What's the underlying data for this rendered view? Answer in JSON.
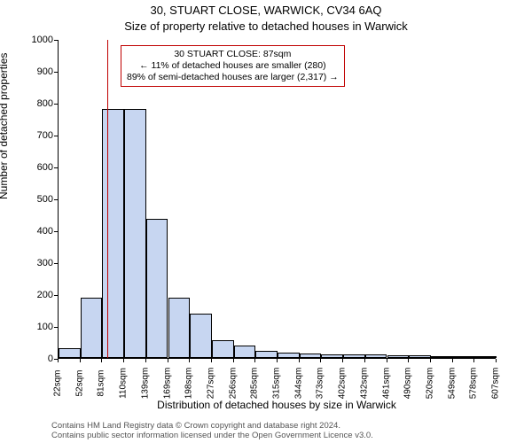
{
  "title_line1": "30, STUART CLOSE, WARWICK, CV34 6AQ",
  "title_line2": "Size of property relative to detached houses in Warwick",
  "ylabel": "Number of detached properties",
  "xlabel": "Distribution of detached houses by size in Warwick",
  "chart": {
    "type": "histogram",
    "background_color": "#ffffff",
    "bar_fill": "#c7d6f1",
    "bar_stroke": "#000000",
    "ref_line_color": "#c00000",
    "anno_border_color": "#c00000",
    "ylim": [
      0,
      1000
    ],
    "ytick_step": 100,
    "yticks": [
      0,
      100,
      200,
      300,
      400,
      500,
      600,
      700,
      800,
      900,
      1000
    ],
    "xticks": [
      "22sqm",
      "52sqm",
      "81sqm",
      "110sqm",
      "139sqm",
      "169sqm",
      "198sqm",
      "227sqm",
      "256sqm",
      "285sqm",
      "315sqm",
      "344sqm",
      "373sqm",
      "402sqm",
      "432sqm",
      "461sqm",
      "490sqm",
      "520sqm",
      "549sqm",
      "578sqm",
      "607sqm"
    ],
    "values": [
      30,
      190,
      780,
      780,
      435,
      190,
      140,
      55,
      38,
      22,
      18,
      15,
      10,
      10,
      10,
      8,
      8,
      5,
      5,
      5
    ],
    "ref_value_sqm": 87,
    "x_start_sqm": 22,
    "x_step_sqm": 29.25
  },
  "annotation": {
    "line1": "30 STUART CLOSE: 87sqm",
    "line2": "← 11% of detached houses are smaller (280)",
    "line3": "89% of semi-detached houses are larger (2,317) →"
  },
  "footer": {
    "line1": "Contains HM Land Registry data © Crown copyright and database right 2024.",
    "line2": "Contains public sector information licensed under the Open Government Licence v3.0."
  },
  "fonts": {
    "title_size": 13,
    "label_size": 12,
    "tick_size": 11,
    "xtick_size": 10,
    "anno_size": 10.5,
    "footer_size": 9.5
  }
}
